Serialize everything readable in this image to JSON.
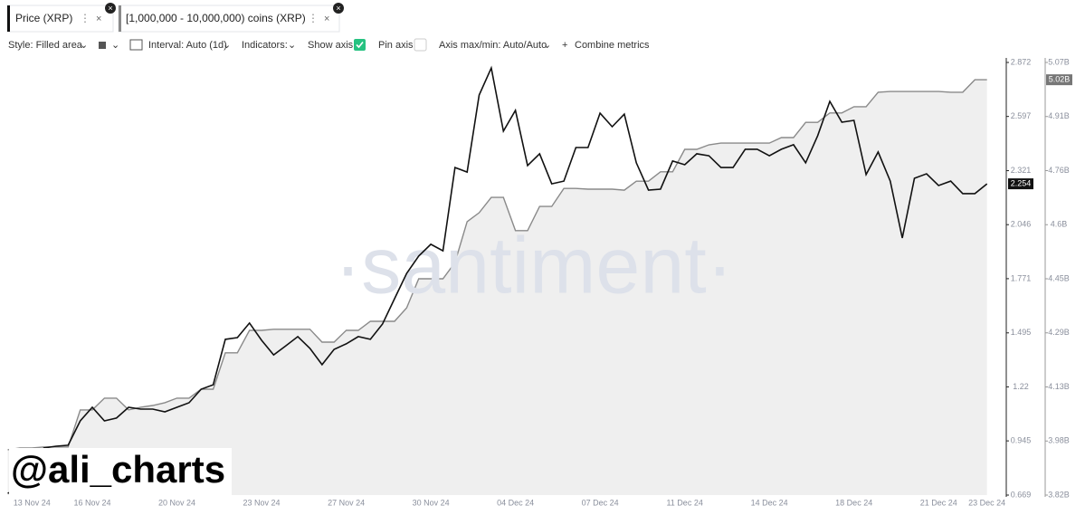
{
  "chart_data": {
    "type": "line",
    "categories": [
      null,
      null,
      "13 Nov 24",
      null,
      null,
      null,
      null,
      "16 Nov 24",
      null,
      null,
      null,
      null,
      null,
      null,
      "20 Nov 24",
      null,
      null,
      null,
      null,
      null,
      null,
      "23 Nov 24",
      null,
      null,
      null,
      null,
      null,
      null,
      "27 Nov 24",
      null,
      null,
      null,
      null,
      null,
      null,
      "30 Nov 24",
      null,
      null,
      null,
      null,
      null,
      null,
      "04 Dec 24",
      null,
      null,
      null,
      null,
      null,
      null,
      "07 Dec 24",
      null,
      null,
      null,
      null,
      null,
      null,
      "11 Dec 24",
      null,
      null,
      null,
      null,
      null,
      null,
      "14 Dec 24",
      null,
      null,
      null,
      null,
      null,
      null,
      "18 Dec 24",
      null,
      null,
      null,
      null,
      null,
      null,
      "21 Dec 24",
      null,
      null,
      null,
      "23 Dec 24"
    ],
    "series": [
      {
        "name": "Price (XRP)",
        "color": "#111111",
        "axis": "y",
        "type": "line",
        "values": [
          0.678,
          0.701,
          0.84,
          0.909,
          0.918,
          0.923,
          1.047,
          1.116,
          1.047,
          1.061,
          1.116,
          1.107,
          1.107,
          1.093,
          1.116,
          1.139,
          1.208,
          1.231,
          1.462,
          1.471,
          1.545,
          1.457,
          1.383,
          1.429,
          1.476,
          1.416,
          1.333,
          1.411,
          1.439,
          1.476,
          1.462,
          1.54,
          1.669,
          1.798,
          1.886,
          1.946,
          1.913,
          2.337,
          2.314,
          2.706,
          2.844,
          2.522,
          2.628,
          2.347,
          2.407,
          2.254,
          2.268,
          2.439,
          2.439,
          2.614,
          2.545,
          2.609,
          2.361,
          2.222,
          2.227,
          2.37,
          2.351,
          2.407,
          2.397,
          2.337,
          2.337,
          2.43,
          2.43,
          2.397,
          2.43,
          2.453,
          2.361,
          2.499,
          2.674,
          2.568,
          2.577,
          2.301,
          2.416,
          2.268,
          1.978,
          2.282,
          2.305,
          2.245,
          2.268,
          2.204,
          2.204,
          2.254
        ]
      },
      {
        "name": "[1,000,000 - 10,000,000) coins (XRP)",
        "color": "#8a8a8a",
        "fill": "#efefef",
        "axis": "y2",
        "type": "area",
        "last_value_label": "5.02B",
        "values": [
          3951000000,
          3956000000,
          3956000000,
          3959000000,
          3959000000,
          3959000000,
          4066000000,
          4066000000,
          4100000000,
          4100000000,
          4066000000,
          4074000000,
          4079000000,
          4087000000,
          4100000000,
          4100000000,
          4126000000,
          4126000000,
          4231000000,
          4231000000,
          4296000000,
          4296000000,
          4299000000,
          4299000000,
          4299000000,
          4299000000,
          4262000000,
          4262000000,
          4296000000,
          4296000000,
          4322000000,
          4322000000,
          4322000000,
          4361000000,
          4445000000,
          4445000000,
          4445000000,
          4492000000,
          4610000000,
          4636000000,
          4680000000,
          4680000000,
          4584000000,
          4584000000,
          4654000000,
          4654000000,
          4706000000,
          4706000000,
          4704000000,
          4704000000,
          4704000000,
          4701000000,
          4727000000,
          4727000000,
          4754000000,
          4754000000,
          4819000000,
          4819000000,
          4832000000,
          4837000000,
          4837000000,
          4837000000,
          4837000000,
          4837000000,
          4853000000,
          4853000000,
          4897000000,
          4897000000,
          4924000000,
          4924000000,
          4942000000,
          4942000000,
          4984000000,
          4986000000,
          4986000000,
          4986000000,
          4986000000,
          4986000000,
          4984000000,
          4984000000,
          5020000000,
          5020000000
        ]
      }
    ],
    "ylim": [
      0.669,
      2.872
    ],
    "yticks": [
      0.669,
      0.945,
      1.22,
      1.495,
      1.771,
      2.046,
      2.321,
      2.597,
      2.872
    ],
    "y2lim": [
      3820000000,
      5070000000
    ],
    "y2ticks": [
      {
        "value": 3820000000,
        "label": "3.82B"
      },
      {
        "value": 3976250000,
        "label": "3.98B"
      },
      {
        "value": 4132500000,
        "label": "4.13B"
      },
      {
        "value": 4288750000,
        "label": "4.29B"
      },
      {
        "value": 4445000000,
        "label": "4.45B"
      },
      {
        "value": 4601250000,
        "label": "4.6B"
      },
      {
        "value": 4757500000,
        "label": "4.76B"
      },
      {
        "value": 4913750000,
        "label": "4.91B"
      },
      {
        "value": 5070000000,
        "label": "5.07B"
      }
    ]
  },
  "ui": {
    "toolbar": [
      "Style: Filled area",
      "Interval: Auto (1d)",
      "Indicators:",
      "Show axis",
      "Pin axis",
      "Axis max/min: Auto/Auto",
      "Combine metrics"
    ],
    "watermark": "·santiment·",
    "credit": "@ali_charts"
  }
}
